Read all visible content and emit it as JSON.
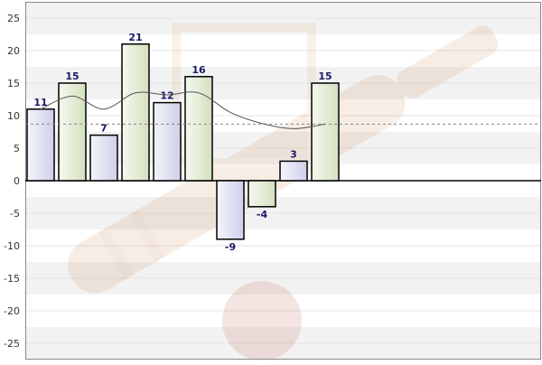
{
  "chart_data": {
    "type": "bar",
    "title": "",
    "xlabel": "",
    "ylabel": "",
    "ylim": [
      -27.5,
      27.5
    ],
    "yticks": [
      -25,
      -20,
      -15,
      -10,
      -5,
      0,
      5,
      10,
      15,
      20,
      25
    ],
    "grid": true,
    "bars": [
      {
        "value": 11,
        "label": "11"
      },
      {
        "value": 15,
        "label": "15"
      },
      {
        "value": 7,
        "label": "7"
      },
      {
        "value": 21,
        "label": "21"
      },
      {
        "value": 12,
        "label": "12"
      },
      {
        "value": 16,
        "label": "16"
      },
      {
        "value": -9,
        "label": "-9"
      },
      {
        "value": -4,
        "label": "-4"
      },
      {
        "value": 3,
        "label": "3"
      },
      {
        "value": 15,
        "label": "15"
      }
    ],
    "bar_fills": [
      "#dcdcf0",
      "#e2ead4"
    ],
    "bar_stroke": "#000000",
    "label_color": "#1a1a66",
    "trend_line": [
      11,
      13,
      11,
      13.5,
      13.2,
      13.5,
      10.5,
      8.8,
      8,
      8.7
    ],
    "average_line": 8.7,
    "watermark": "cricket-bat-and-ball"
  }
}
